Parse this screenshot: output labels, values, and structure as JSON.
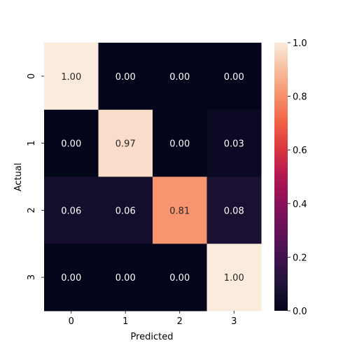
{
  "chart_data": {
    "type": "heatmap",
    "title": "",
    "xlabel": "Predicted",
    "ylabel": "Actual",
    "x_categories": [
      "0",
      "1",
      "2",
      "3"
    ],
    "y_categories": [
      "0",
      "1",
      "2",
      "3"
    ],
    "values": [
      [
        1.0,
        0.0,
        0.0,
        0.0
      ],
      [
        0.0,
        0.97,
        0.0,
        0.03
      ],
      [
        0.06,
        0.06,
        0.81,
        0.08
      ],
      [
        0.0,
        0.0,
        0.0,
        1.0
      ]
    ],
    "cell_labels": [
      [
        "1.00",
        "0.00",
        "0.00",
        "0.00"
      ],
      [
        "0.00",
        "0.97",
        "0.00",
        "0.03"
      ],
      [
        "0.06",
        "0.06",
        "0.81",
        "0.08"
      ],
      [
        "0.00",
        "0.00",
        "0.00",
        "1.00"
      ]
    ],
    "colorbar": {
      "range": [
        0.0,
        1.0
      ],
      "ticks": [
        0.0,
        0.2,
        0.4,
        0.6,
        0.8,
        1.0
      ],
      "tick_labels": [
        "0.0",
        "0.2",
        "0.4",
        "0.6",
        "0.8",
        "1.0"
      ]
    },
    "colormap": "rocket",
    "grid": false,
    "legend": "colorbar-right"
  }
}
